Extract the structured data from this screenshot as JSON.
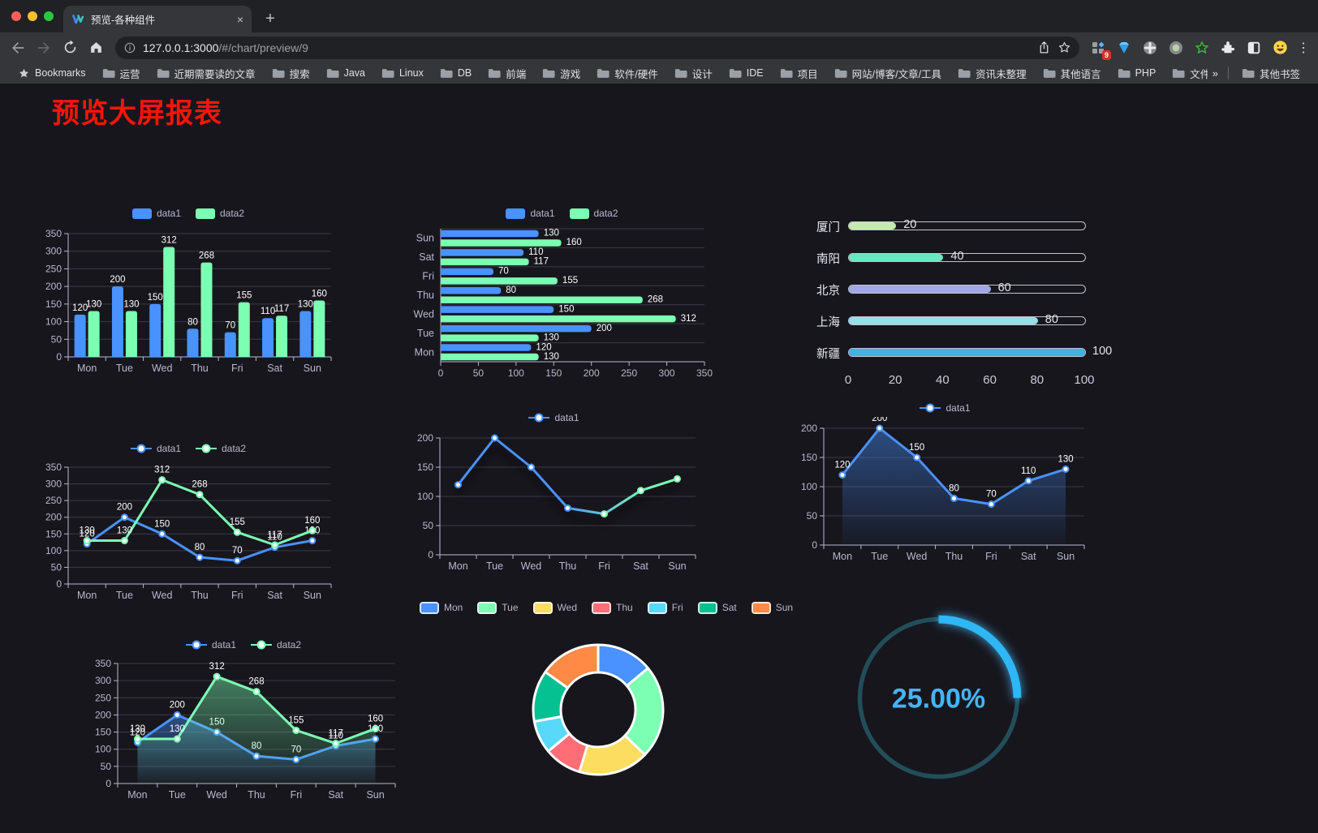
{
  "browser": {
    "tab_title": "预览-各种组件",
    "new_tab_plus": "+",
    "close_glyph": "×",
    "url_host": "127.0.0.1:3000",
    "url_path": "/#/chart/preview/9",
    "extension_badge": "9",
    "kebab_glyph": "⋮",
    "bookmarks_root_label": "Bookmarks",
    "bookmarks": [
      "运营",
      "近期需要读的文章",
      "搜索",
      "Java",
      "Linux",
      "DB",
      "前端",
      "游戏",
      "软件/硬件",
      "设计",
      "IDE",
      "项目",
      "网站/博客/文章/工具",
      "资讯未整理",
      "其他语言",
      "PHP",
      "文件服务器"
    ],
    "overflow_chevron": "»",
    "other_bookmarks_label": "其他书签"
  },
  "page": {
    "title": "预览大屏报表",
    "title_color": "#fb1408"
  },
  "theme": {
    "axis_color": "#b9b8ce",
    "grid_color": "#3b3b47",
    "label_color": "#ffffff",
    "background": "#17161d"
  },
  "chart_data": [
    {
      "id": "bar-vertical",
      "type": "bar",
      "categories": [
        "Mon",
        "Tue",
        "Wed",
        "Thu",
        "Fri",
        "Sat",
        "Sun"
      ],
      "series": [
        {
          "name": "data1",
          "color": "#4992ff",
          "values": [
            120,
            200,
            150,
            80,
            70,
            110,
            130
          ]
        },
        {
          "name": "data2",
          "color": "#7cffb2",
          "values": [
            130,
            130,
            312,
            268,
            155,
            117,
            160
          ]
        }
      ],
      "ylim": [
        0,
        350
      ],
      "yticks": [
        0,
        50,
        100,
        150,
        200,
        250,
        300,
        350
      ],
      "legend": "rect",
      "show_labels": true
    },
    {
      "id": "bar-horizontal",
      "type": "hbar",
      "categories": [
        "Mon",
        "Tue",
        "Wed",
        "Thu",
        "Fri",
        "Sat",
        "Sun"
      ],
      "series": [
        {
          "name": "data1",
          "color": "#4992ff",
          "values": [
            120,
            200,
            150,
            80,
            70,
            110,
            130
          ]
        },
        {
          "name": "data2",
          "color": "#7cffb2",
          "values": [
            130,
            130,
            312,
            268,
            155,
            117,
            160
          ]
        }
      ],
      "xlim": [
        0,
        350
      ],
      "xticks": [
        0,
        50,
        100,
        150,
        200,
        250,
        300,
        350
      ],
      "legend": "rect",
      "show_labels": true
    },
    {
      "id": "capsule-bars",
      "type": "capsule",
      "xlim": [
        0,
        100
      ],
      "xticks": [
        0,
        20,
        40,
        60,
        80,
        100
      ],
      "rows": [
        {
          "label": "厦门",
          "value": 20,
          "color": "#c4ebad"
        },
        {
          "label": "南阳",
          "value": 40,
          "color": "#6be6c1"
        },
        {
          "label": "北京",
          "value": 60,
          "color": "#a0a7e6"
        },
        {
          "label": "上海",
          "value": 80,
          "color": "#96dee8"
        },
        {
          "label": "新疆",
          "value": 100,
          "color": "#3fb1e3"
        }
      ]
    },
    {
      "id": "line-two",
      "type": "line",
      "categories": [
        "Mon",
        "Tue",
        "Wed",
        "Thu",
        "Fri",
        "Sat",
        "Sun"
      ],
      "series": [
        {
          "name": "data1",
          "color": "#4992ff",
          "values": [
            120,
            200,
            150,
            80,
            70,
            110,
            130
          ]
        },
        {
          "name": "data2",
          "color": "#7cffb2",
          "values": [
            130,
            130,
            312,
            268,
            155,
            117,
            160
          ]
        }
      ],
      "ylim": [
        0,
        350
      ],
      "yticks": [
        0,
        50,
        100,
        150,
        200,
        250,
        300,
        350
      ],
      "legend": "line",
      "show_labels": true
    },
    {
      "id": "line-gradient",
      "type": "line",
      "categories": [
        "Mon",
        "Tue",
        "Wed",
        "Thu",
        "Fri",
        "Sat",
        "Sun"
      ],
      "series": [
        {
          "name": "data1",
          "color": "#4992ff",
          "color_end": "#7cffb2",
          "values": [
            120,
            200,
            150,
            80,
            70,
            110,
            130
          ]
        }
      ],
      "ylim": [
        0,
        200
      ],
      "yticks": [
        0,
        50,
        100,
        150,
        200
      ],
      "legend": "line",
      "show_labels": false,
      "shadow": true
    },
    {
      "id": "area-single",
      "type": "area",
      "categories": [
        "Mon",
        "Tue",
        "Wed",
        "Thu",
        "Fri",
        "Sat",
        "Sun"
      ],
      "series": [
        {
          "name": "data1",
          "color": "#4992ff",
          "values": [
            120,
            200,
            150,
            80,
            70,
            110,
            130
          ]
        }
      ],
      "ylim": [
        0,
        200
      ],
      "yticks": [
        0,
        50,
        100,
        150,
        200
      ],
      "legend": "line",
      "show_labels": true
    },
    {
      "id": "area-two",
      "type": "area",
      "categories": [
        "Mon",
        "Tue",
        "Wed",
        "Thu",
        "Fri",
        "Sat",
        "Sun"
      ],
      "series": [
        {
          "name": "data1",
          "color": "#4992ff",
          "values": [
            120,
            200,
            150,
            80,
            70,
            110,
            130
          ]
        },
        {
          "name": "data2",
          "color": "#7cffb2",
          "values": [
            130,
            130,
            312,
            268,
            155,
            117,
            160
          ]
        }
      ],
      "ylim": [
        0,
        350
      ],
      "yticks": [
        0,
        50,
        100,
        150,
        200,
        250,
        300,
        350
      ],
      "legend": "line",
      "show_labels": true
    },
    {
      "id": "donut",
      "type": "pie",
      "legend": "pie",
      "items": [
        {
          "label": "Mon",
          "value": 120,
          "color": "#4992ff"
        },
        {
          "label": "Tue",
          "value": 200,
          "color": "#7cffb2"
        },
        {
          "label": "Wed",
          "value": 150,
          "color": "#fddd60"
        },
        {
          "label": "Thu",
          "value": 80,
          "color": "#ff6e76"
        },
        {
          "label": "Fri",
          "value": 70,
          "color": "#58d9f9"
        },
        {
          "label": "Sat",
          "value": 110,
          "color": "#05c091"
        },
        {
          "label": "Sun",
          "value": 130,
          "color": "#ff8a45"
        }
      ]
    },
    {
      "id": "gauge",
      "type": "gauge",
      "value": 25,
      "max": 100,
      "label": "25.00%",
      "color": "#2eb7f4",
      "track_color": "#224e5a",
      "text_color": "#45b4f5"
    }
  ]
}
